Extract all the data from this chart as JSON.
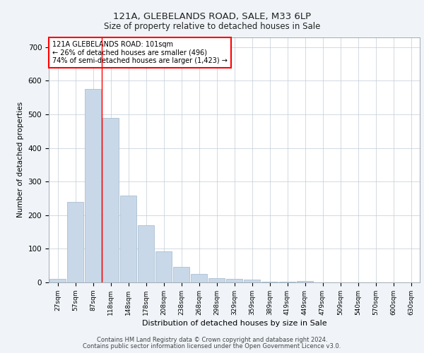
{
  "title1": "121A, GLEBELANDS ROAD, SALE, M33 6LP",
  "title2": "Size of property relative to detached houses in Sale",
  "xlabel": "Distribution of detached houses by size in Sale",
  "ylabel": "Number of detached properties",
  "bar_labels": [
    "27sqm",
    "57sqm",
    "87sqm",
    "118sqm",
    "148sqm",
    "178sqm",
    "208sqm",
    "238sqm",
    "268sqm",
    "298sqm",
    "329sqm",
    "359sqm",
    "389sqm",
    "419sqm",
    "449sqm",
    "479sqm",
    "509sqm",
    "540sqm",
    "570sqm",
    "600sqm",
    "630sqm"
  ],
  "bar_values": [
    10,
    240,
    575,
    490,
    258,
    170,
    92,
    46,
    26,
    12,
    10,
    8,
    3,
    2,
    5,
    0,
    0,
    0,
    0,
    0,
    0
  ],
  "bar_color": "#c8d8e8",
  "bar_edge_color": "#a0b8cc",
  "red_line_x": 2.5,
  "annotation_title": "121A GLEBELANDS ROAD: 101sqm",
  "annotation_line1": "← 26% of detached houses are smaller (496)",
  "annotation_line2": "74% of semi-detached houses are larger (1,423) →",
  "ylim": [
    0,
    730
  ],
  "yticks": [
    0,
    100,
    200,
    300,
    400,
    500,
    600,
    700
  ],
  "footer1": "Contains HM Land Registry data © Crown copyright and database right 2024.",
  "footer2": "Contains public sector information licensed under the Open Government Licence v3.0.",
  "bg_color": "#f0f4f8",
  "plot_bg_color": "#ffffff"
}
